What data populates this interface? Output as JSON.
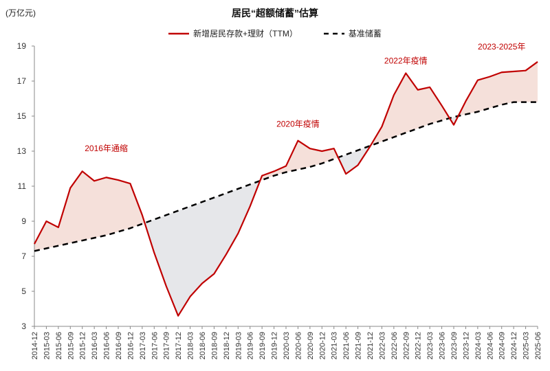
{
  "unit_label": "(万亿元)",
  "chart_data": {
    "type": "line",
    "title": "居民“超额储蓄”估算",
    "ylabel": "(万亿元)",
    "ylim": [
      3,
      19
    ],
    "yticks": [
      3,
      5,
      7,
      9,
      11,
      13,
      15,
      17,
      19
    ],
    "grid": false,
    "legend_position": "top-center",
    "x": [
      "2014-12",
      "2015-03",
      "2015-06",
      "2015-09",
      "2015-12",
      "2016-03",
      "2016-06",
      "2016-09",
      "2016-12",
      "2017-03",
      "2017-06",
      "2017-09",
      "2017-12",
      "2018-03",
      "2018-06",
      "2018-09",
      "2018-12",
      "2019-03",
      "2019-06",
      "2019-09",
      "2019-12",
      "2020-03",
      "2020-06",
      "2020-09",
      "2020-12",
      "2021-03",
      "2021-06",
      "2021-09",
      "2021-12",
      "2022-03",
      "2022-06",
      "2022-09",
      "2022-12",
      "2023-03",
      "2023-06",
      "2023-09",
      "2023-12",
      "2024-03",
      "2024-06",
      "2024-09",
      "2024-12",
      "2025-03",
      "2025-06"
    ],
    "series": [
      {
        "name": "新增居民存款+理财（TTM）",
        "color": "#c00000",
        "style": "solid",
        "values": [
          7.7,
          9.0,
          8.65,
          10.9,
          11.85,
          11.3,
          11.5,
          11.35,
          11.15,
          9.35,
          7.2,
          5.3,
          3.6,
          4.7,
          5.45,
          6.0,
          7.1,
          8.3,
          9.85,
          11.6,
          11.85,
          12.15,
          13.6,
          13.15,
          13.0,
          13.15,
          11.7,
          12.2,
          13.25,
          14.4,
          16.2,
          17.45,
          16.5,
          16.65,
          15.6,
          14.5,
          15.85,
          17.05,
          17.25,
          17.5,
          17.55,
          17.6,
          18.1
        ]
      },
      {
        "name": "基准储蓄",
        "color": "#000000",
        "style": "dashed",
        "values": [
          7.3,
          7.45,
          7.6,
          7.75,
          7.9,
          8.05,
          8.2,
          8.4,
          8.6,
          8.85,
          9.1,
          9.35,
          9.6,
          9.85,
          10.1,
          10.35,
          10.6,
          10.85,
          11.1,
          11.35,
          11.6,
          11.8,
          11.95,
          12.1,
          12.3,
          12.55,
          12.8,
          13.05,
          13.3,
          13.55,
          13.8,
          14.05,
          14.3,
          14.55,
          14.75,
          14.95,
          15.1,
          15.25,
          15.45,
          15.65,
          15.8,
          15.8,
          15.8
        ]
      }
    ],
    "fill_colors": {
      "above": "#f5e0da",
      "below": "#e6e7ea"
    },
    "annotations": [
      {
        "text": "2016年通缩",
        "x": "2016-06",
        "y": 13.0
      },
      {
        "text": "2020年疫情",
        "x": "2020-06",
        "y": 14.4
      },
      {
        "text": "2022年疫情",
        "x": "2022-09",
        "y": 18.0
      },
      {
        "text": "2023-2025年",
        "x": "2024-09",
        "y": 18.8
      }
    ]
  }
}
